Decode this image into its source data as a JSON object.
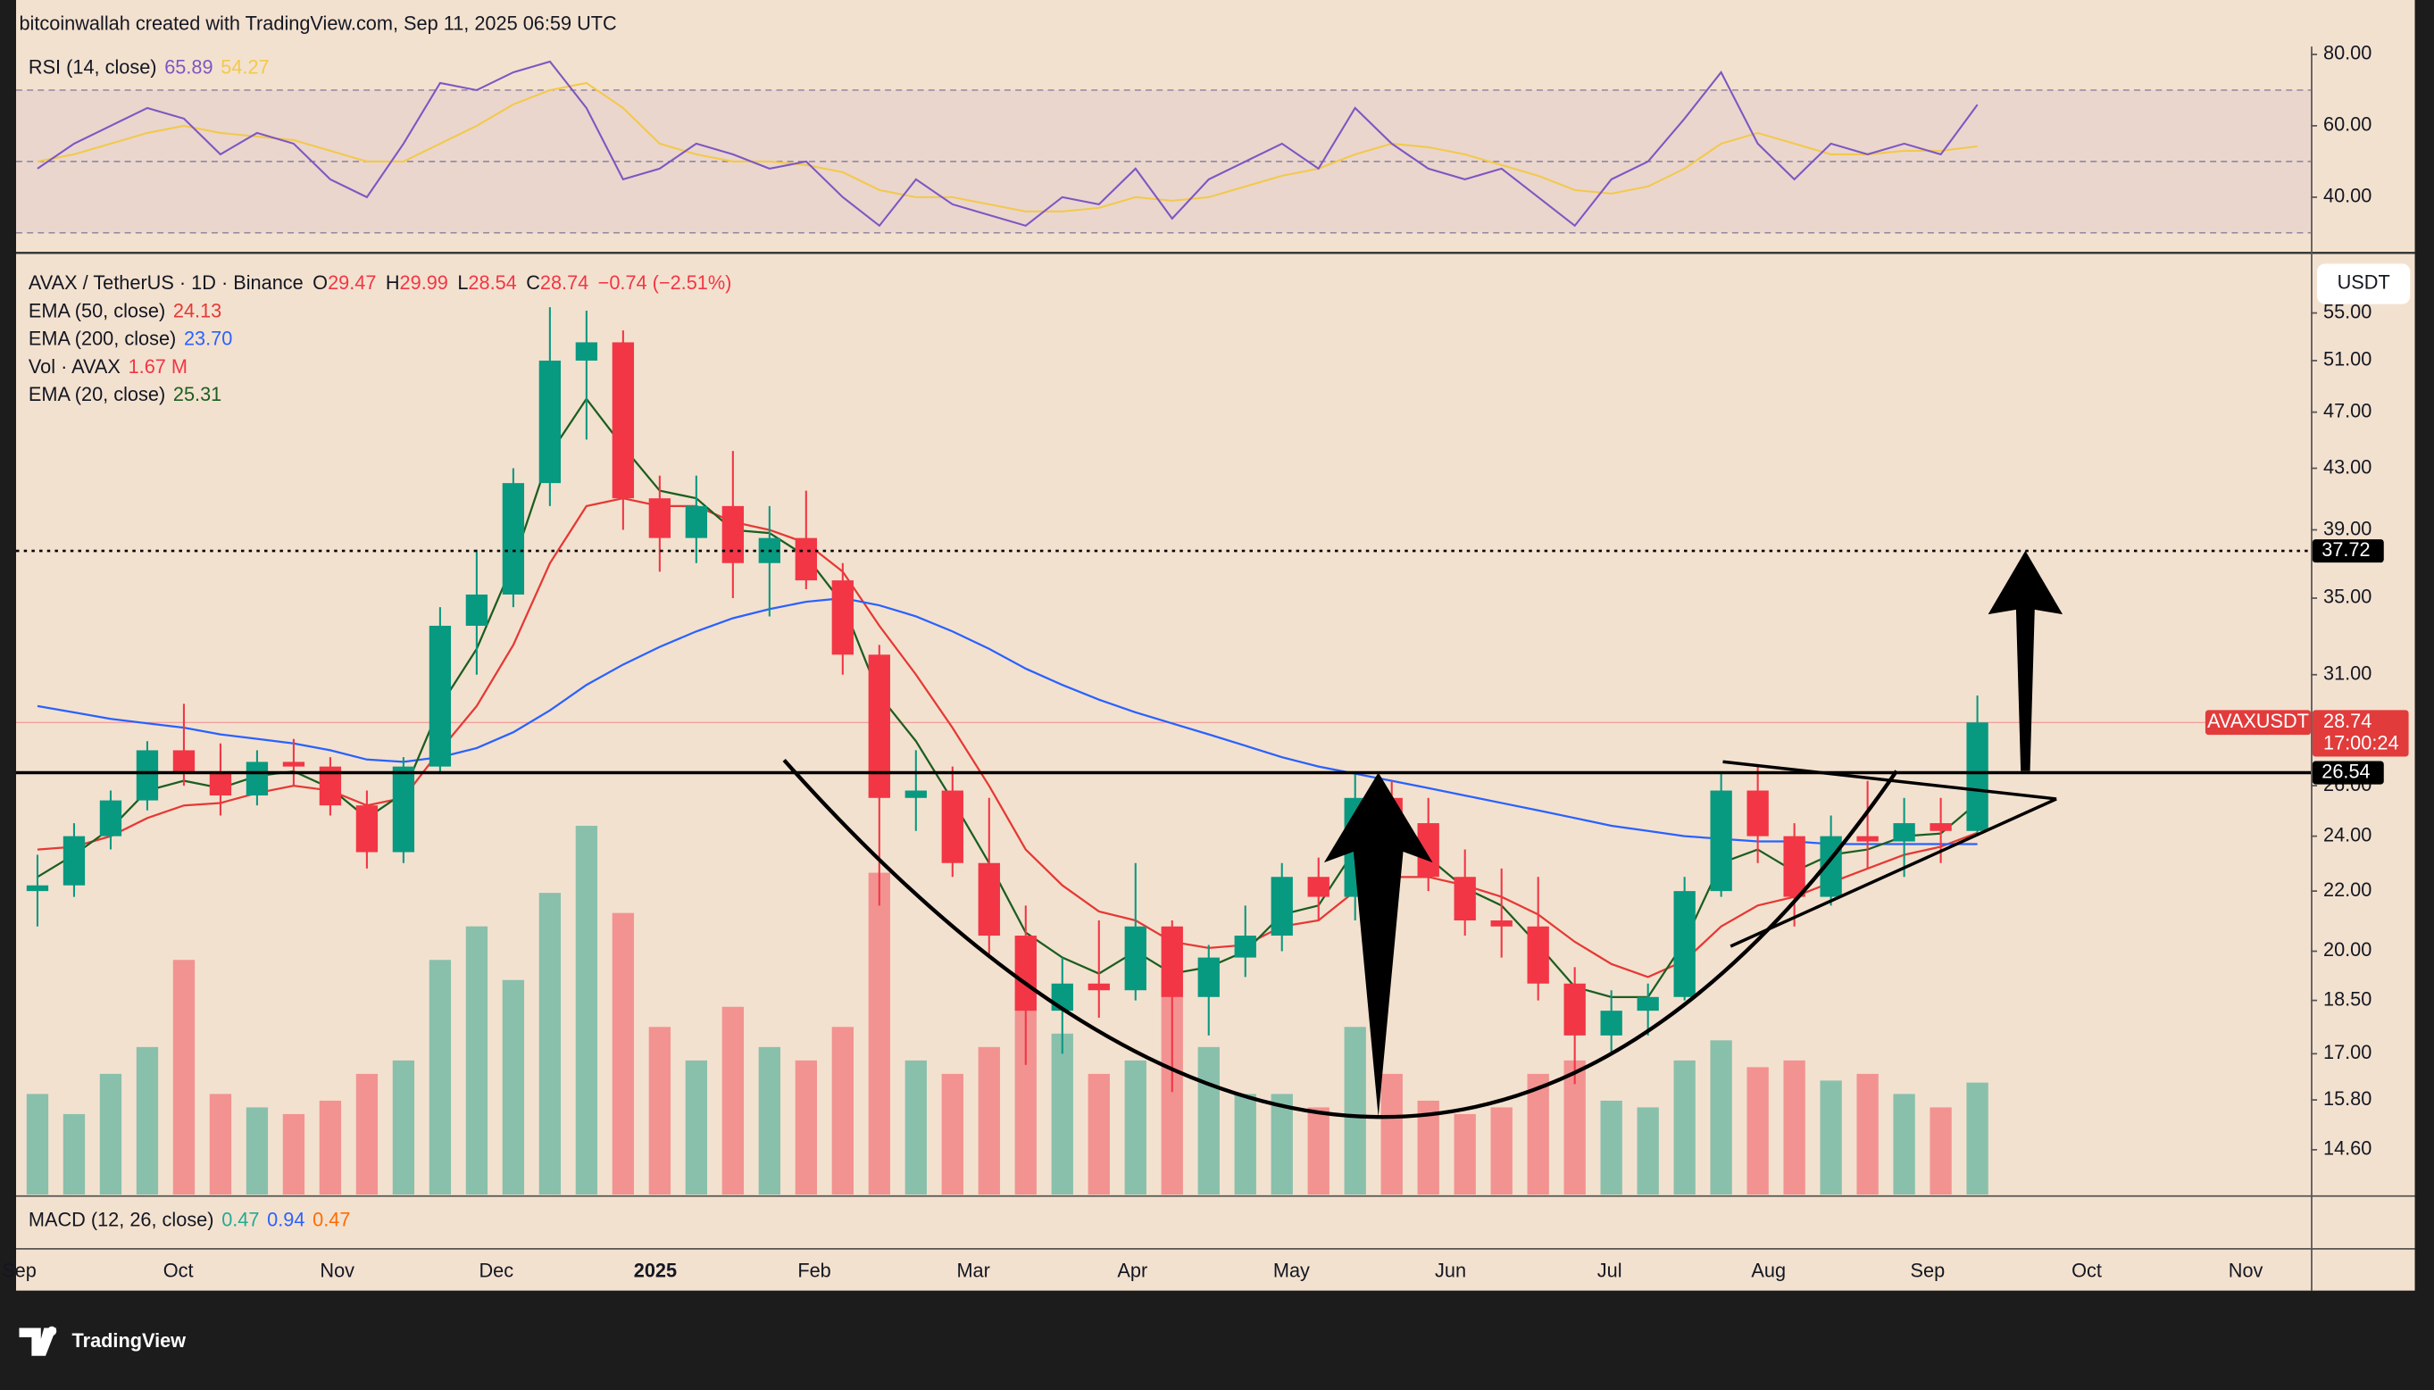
{
  "header": {
    "attribution": "bitcoinwallah created with TradingView.com, Sep 11, 2025 06:59 UTC",
    "brand": "TradingView"
  },
  "chart_data": [
    {
      "type": "candlestick",
      "title": "AVAX / TetherUS · 1D · Binance",
      "ohlc_legend": [
        {
          "label": "O",
          "value": "29.47"
        },
        {
          "label": "H",
          "value": "29.99"
        },
        {
          "label": "L",
          "value": "28.54"
        },
        {
          "label": "C",
          "value": "28.74"
        }
      ],
      "change": "−0.74 (−2.51%)",
      "currency": "USDT",
      "xticks": [
        "Sep",
        "Oct",
        "Nov",
        "Dec",
        "2025",
        "Feb",
        "Mar",
        "Apr",
        "May",
        "Jun",
        "Jul",
        "Aug",
        "Sep",
        "Oct",
        "Nov"
      ],
      "open": [
        22.0,
        22.2,
        24.0,
        25.4,
        27.5,
        26.6,
        25.6,
        27.0,
        26.8,
        25.2,
        23.4,
        26.8,
        33.5,
        35.2,
        42.0,
        51.0,
        52.5,
        41.0,
        38.5,
        40.5,
        37.0,
        38.5,
        36.0,
        32.0,
        25.5,
        25.8,
        23.0,
        20.5,
        18.2,
        19.0,
        18.8,
        20.8,
        18.6,
        19.8,
        20.5,
        22.5,
        21.8,
        25.5,
        24.5,
        22.5,
        21.0,
        20.8,
        19.0,
        17.5,
        18.2,
        18.6,
        22.0,
        25.8,
        24.0,
        21.8,
        24.0,
        23.8,
        24.5,
        24.2
      ],
      "high": [
        23.3,
        24.5,
        25.8,
        27.9,
        29.6,
        27.8,
        27.5,
        28.0,
        27.2,
        25.8,
        27.2,
        34.5,
        37.8,
        43.0,
        55.5,
        55.2,
        53.5,
        42.5,
        42.5,
        44.2,
        40.5,
        41.5,
        37.0,
        32.5,
        27.5,
        26.8,
        25.5,
        21.5,
        19.8,
        21.0,
        23.0,
        21.0,
        20.2,
        21.5,
        23.0,
        23.2,
        26.5,
        26.2,
        25.5,
        23.5,
        22.8,
        22.5,
        19.5,
        18.8,
        19.0,
        22.5,
        26.5,
        26.8,
        24.5,
        24.8,
        26.2,
        25.5,
        25.5,
        29.99
      ],
      "low": [
        20.8,
        21.8,
        23.5,
        25.0,
        26.0,
        24.8,
        25.2,
        26.0,
        24.8,
        22.8,
        23.0,
        26.5,
        31.0,
        34.5,
        40.5,
        45.0,
        39.0,
        36.5,
        37.0,
        35.0,
        34.0,
        35.5,
        31.0,
        21.5,
        24.2,
        22.5,
        19.8,
        16.7,
        17.0,
        18.0,
        18.5,
        16.0,
        17.5,
        19.2,
        20.0,
        21.0,
        21.0,
        22.5,
        22.0,
        20.5,
        19.8,
        18.5,
        16.2,
        17.0,
        17.5,
        18.5,
        21.8,
        23.0,
        20.8,
        21.5,
        22.8,
        22.5,
        23.0,
        24.0
      ],
      "close": [
        22.2,
        24.0,
        25.4,
        27.5,
        26.6,
        25.6,
        27.0,
        26.8,
        25.2,
        23.4,
        26.8,
        33.5,
        35.2,
        42.0,
        51.0,
        52.5,
        41.0,
        38.5,
        40.5,
        37.0,
        38.5,
        36.0,
        32.0,
        25.5,
        25.8,
        23.0,
        20.5,
        18.2,
        19.0,
        18.8,
        20.8,
        18.6,
        19.8,
        20.5,
        22.5,
        21.8,
        25.5,
        24.5,
        22.5,
        21.0,
        20.8,
        19.0,
        17.5,
        18.2,
        18.6,
        22.0,
        25.8,
        24.0,
        21.8,
        24.0,
        23.8,
        24.5,
        24.2,
        28.74
      ],
      "up_color": "#089981",
      "down_color": "#f23645",
      "log_scale": true,
      "ylim": [
        13.6,
        60.2
      ],
      "yticks": [
        {
          "value": 55,
          "label": "55.00"
        },
        {
          "value": 51,
          "label": "51.00"
        },
        {
          "value": 47,
          "label": "47.00"
        },
        {
          "value": 43,
          "label": "43.00"
        },
        {
          "value": 39,
          "label": "39.00"
        },
        {
          "value": 35,
          "label": "35.00"
        },
        {
          "value": 31,
          "label": "31.00"
        },
        {
          "value": 26,
          "label": "26.00"
        },
        {
          "value": 24,
          "label": "24.00"
        },
        {
          "value": 22,
          "label": "22.00"
        },
        {
          "value": 20,
          "label": "20.00"
        },
        {
          "value": 18.5,
          "label": "18.50"
        },
        {
          "value": 17,
          "label": "17.00"
        },
        {
          "value": 15.8,
          "label": "15.80"
        },
        {
          "value": 14.6,
          "label": "14.60"
        }
      ],
      "series": [
        {
          "name": "EMA (50, close)",
          "color": "#e53935",
          "last": "24.13",
          "values": [
            23.5,
            23.6,
            24,
            24.7,
            25.2,
            25.3,
            25.7,
            26,
            25.8,
            25.2,
            25.5,
            27.5,
            29.5,
            32.5,
            37,
            40.5,
            41,
            40.5,
            40.5,
            39.5,
            39,
            38.2,
            36.5,
            33.5,
            31,
            28.5,
            26,
            23.5,
            22.2,
            21.3,
            21,
            20.3,
            20.1,
            20.2,
            20.8,
            21,
            22,
            22.5,
            22.5,
            22.2,
            21.8,
            21.2,
            20.3,
            19.6,
            19.2,
            19.7,
            20.8,
            21.5,
            21.8,
            22.3,
            22.8,
            23.3,
            23.6,
            24.13
          ]
        },
        {
          "name": "EMA (200, close)",
          "color": "#2962ff",
          "last": "23.70",
          "values": [
            29.5,
            29.2,
            28.9,
            28.7,
            28.5,
            28.2,
            28,
            27.8,
            27.5,
            27.1,
            27,
            27.2,
            27.6,
            28.3,
            29.3,
            30.5,
            31.5,
            32.4,
            33.2,
            33.9,
            34.4,
            34.8,
            35,
            34.6,
            34,
            33.2,
            32.3,
            31.3,
            30.5,
            29.8,
            29.2,
            28.7,
            28.2,
            27.7,
            27.2,
            26.8,
            26.5,
            26.2,
            25.9,
            25.6,
            25.3,
            25,
            24.7,
            24.4,
            24.2,
            24,
            23.9,
            23.8,
            23.8,
            23.7,
            23.7,
            23.7,
            23.7,
            23.7
          ]
        },
        {
          "name": "EMA (20, close)",
          "color": "#1b5e20",
          "last": "25.31",
          "values": [
            22.5,
            23.3,
            24.3,
            25.8,
            26.2,
            25.9,
            26.4,
            26.6,
            25.9,
            24.7,
            25.7,
            29.5,
            32.3,
            37,
            44,
            48,
            44.5,
            41.5,
            41,
            39,
            38.8,
            37.4,
            34.7,
            30,
            27.9,
            25.4,
            23,
            20.6,
            19.8,
            19.3,
            20,
            19.3,
            19.5,
            20,
            21.2,
            21.5,
            23.5,
            24,
            23.2,
            22.1,
            21.5,
            20.2,
            18.9,
            18.6,
            18.6,
            20.3,
            23,
            23.5,
            22.7,
            23.3,
            23.5,
            24,
            24.1,
            25.31
          ]
        }
      ],
      "volume": {
        "name": "Vol · AVAX",
        "last": "1.67 M",
        "ylim": [
          0,
          14
        ],
        "values": [
          1.5,
          1.2,
          1.8,
          2.2,
          3.5,
          1.5,
          1.3,
          1.2,
          1.4,
          1.8,
          2.0,
          3.5,
          4.0,
          3.2,
          4.5,
          5.5,
          4.2,
          2.5,
          2.0,
          2.8,
          2.2,
          2.0,
          2.5,
          4.8,
          2.0,
          1.8,
          2.2,
          3.0,
          2.4,
          1.8,
          2.0,
          3.2,
          2.2,
          1.5,
          1.5,
          1.3,
          2.5,
          1.8,
          1.4,
          1.2,
          1.3,
          1.8,
          2.0,
          1.4,
          1.3,
          2.0,
          2.3,
          1.9,
          2.0,
          1.7,
          1.8,
          1.5,
          1.3,
          1.67
        ]
      },
      "levels": [
        {
          "value": 37.72,
          "label": "37.72",
          "style": "dotted"
        },
        {
          "value": 26.54,
          "label": "26.54",
          "style": "solid"
        }
      ],
      "last_price": {
        "symbol": "AVAXUSDT",
        "value": 28.74,
        "label": "28.74",
        "countdown": "17:00:24"
      }
    },
    {
      "type": "line",
      "title": "RSI (14, close)",
      "ylim": [
        25.7,
        82.2
      ],
      "yticks": [
        {
          "value": 80,
          "label": "80.00"
        },
        {
          "value": 60,
          "label": "60.00"
        },
        {
          "value": 40,
          "label": "40.00"
        }
      ],
      "levels": [
        70,
        50,
        30
      ],
      "series": [
        {
          "color": "#7e57c2",
          "last": "65.89",
          "values": [
            48,
            55,
            60,
            65,
            62,
            52,
            58,
            55,
            45,
            40,
            55,
            72,
            70,
            75,
            78,
            65,
            45,
            48,
            55,
            52,
            48,
            50,
            40,
            32,
            45,
            38,
            35,
            32,
            40,
            38,
            48,
            34,
            45,
            50,
            55,
            48,
            65,
            55,
            48,
            45,
            48,
            40,
            32,
            45,
            50,
            62,
            75,
            55,
            45,
            55,
            52,
            55,
            52,
            65.89
          ]
        },
        {
          "color": "#f2c94c",
          "last": "54.27",
          "values": [
            50,
            52,
            55,
            58,
            60,
            58,
            57,
            56,
            53,
            50,
            50,
            55,
            60,
            66,
            70,
            72,
            65,
            55,
            52,
            50,
            50,
            49,
            47,
            42,
            40,
            40,
            38,
            36,
            36,
            37,
            40,
            39,
            40,
            43,
            46,
            48,
            52,
            55,
            54,
            52,
            49,
            46,
            42,
            41,
            43,
            48,
            55,
            58,
            55,
            52,
            52,
            53,
            53,
            54.27
          ]
        }
      ]
    },
    {
      "type": "macd",
      "title": "MACD (12, 26, close)",
      "legend_values": [
        {
          "value": "0.47",
          "color": "#22ab94"
        },
        {
          "value": "0.94",
          "color": "#2962ff"
        },
        {
          "value": "0.47",
          "color": "#ff6d00"
        }
      ]
    }
  ]
}
